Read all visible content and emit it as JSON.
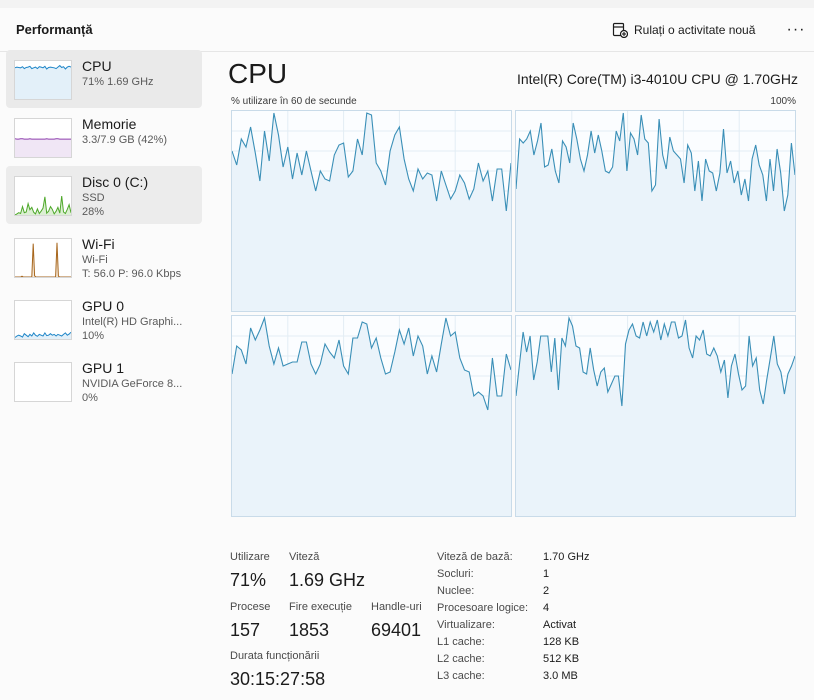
{
  "header": {
    "title": "Performanță",
    "run_task_label": "Rulați o activitate nouă",
    "more_label": "···"
  },
  "sidebar": {
    "items": [
      {
        "name": "CPU",
        "sub1": "71%  1.69 GHz",
        "sub2": "",
        "graph_color": "#1f86c8"
      },
      {
        "name": "Memorie",
        "sub1": "3.3/7.9 GB (42%)",
        "sub2": "",
        "graph_color": "#8e3fae"
      },
      {
        "name": "Disc 0 (C:)",
        "sub1": "SSD",
        "sub2": "28%",
        "graph_color": "#4ea82a"
      },
      {
        "name": "Wi-Fi",
        "sub1": "Wi-Fi",
        "sub2": "T: 56.0  P: 96.0 Kbps",
        "graph_color": "#a7661c"
      },
      {
        "name": "GPU 0",
        "sub1": "Intel(R) HD Graphi...",
        "sub2": "10%",
        "graph_color": "#1f86c8"
      },
      {
        "name": "GPU 1",
        "sub1": "NVIDIA GeForce 8...",
        "sub2": "0%",
        "graph_color": "#1f86c8"
      }
    ]
  },
  "main": {
    "title": "CPU",
    "model": "Intel(R) Core(TM) i3-4010U CPU @ 1.70GHz",
    "util_label": "% utilizare în 60 de secunde",
    "max_label": "100%",
    "graph_color": "#3a8fb7",
    "core_graphs": [
      [
        80,
        73,
        86,
        82,
        92,
        79,
        65,
        90,
        75,
        99,
        88,
        72,
        82,
        66,
        79,
        68,
        80,
        70,
        60,
        70,
        66,
        65,
        78,
        83,
        84,
        67,
        70,
        86,
        78,
        99,
        98,
        74,
        70,
        63,
        80,
        88,
        92,
        76,
        66,
        60,
        71,
        66,
        69,
        68,
        55,
        70,
        63,
        56,
        60,
        68,
        64,
        56,
        61,
        74,
        65,
        70,
        55,
        71,
        71,
        50,
        74
      ],
      [
        61,
        86,
        84,
        86,
        90,
        78,
        85,
        94,
        72,
        73,
        81,
        70,
        64,
        85,
        82,
        74,
        94,
        86,
        76,
        70,
        78,
        90,
        79,
        88,
        80,
        70,
        69,
        72,
        90,
        85,
        99,
        70,
        89,
        86,
        78,
        98,
        86,
        84,
        60,
        63,
        96,
        78,
        71,
        87,
        80,
        78,
        76,
        64,
        83,
        79,
        60,
        75,
        55,
        76,
        70,
        69,
        60,
        69,
        91,
        69,
        75,
        64,
        70,
        58,
        66,
        55,
        76,
        83,
        73,
        68,
        55,
        76,
        60,
        81,
        69,
        50,
        58,
        84,
        68
      ],
      [
        71,
        85,
        83,
        76,
        94,
        88,
        93,
        99,
        85,
        76,
        84,
        75,
        76,
        77,
        77,
        87,
        87,
        76,
        71,
        76,
        86,
        82,
        79,
        88,
        75,
        71,
        89,
        89,
        97,
        96,
        84,
        89,
        79,
        71,
        72,
        82,
        93,
        86,
        94,
        80,
        90,
        85,
        71,
        80,
        72,
        86,
        99,
        90,
        92,
        79,
        73,
        72,
        60,
        62,
        60,
        53,
        79,
        60,
        60,
        81,
        73
      ],
      [
        60,
        76,
        92,
        82,
        90,
        68,
        77,
        90,
        90,
        90,
        72,
        89,
        63,
        89,
        85,
        99,
        95,
        85,
        84,
        72,
        71,
        84,
        73,
        65,
        72,
        74,
        62,
        66,
        70,
        70,
        55,
        86,
        93,
        96,
        90,
        89,
        97,
        90,
        97,
        92,
        98,
        88,
        96,
        90,
        97,
        97,
        89,
        90,
        98,
        84,
        79,
        90,
        88,
        93,
        81,
        80,
        84,
        80,
        72,
        78,
        59,
        75,
        81,
        71,
        63,
        65,
        90,
        75,
        79,
        63,
        56,
        68,
        79,
        90,
        76,
        72,
        61,
        71,
        75,
        80
      ]
    ],
    "cpu_thumb": [
      82,
      84,
      83,
      82,
      85,
      80,
      83,
      84,
      86,
      80,
      82,
      84,
      80,
      85,
      84,
      82,
      86,
      79,
      83,
      84,
      83,
      82,
      80,
      84,
      88,
      83,
      85,
      79,
      84,
      86,
      84
    ],
    "memory_thumb": [
      48,
      47,
      47,
      48,
      48,
      47,
      47,
      47,
      48,
      47,
      47,
      47,
      47,
      47,
      47,
      47,
      47,
      48,
      47,
      47,
      47,
      47,
      48,
      48,
      47,
      47,
      47,
      47,
      47,
      47,
      47
    ],
    "disk_thumb": [
      0,
      3,
      6,
      4,
      22,
      6,
      8,
      30,
      14,
      20,
      7,
      3,
      16,
      4,
      10,
      18,
      48,
      5,
      10,
      22,
      15,
      3,
      10,
      20,
      5,
      50,
      8,
      4,
      15,
      27,
      6
    ],
    "wifi_thumb": [
      0,
      0,
      0,
      0,
      0,
      2,
      0,
      0,
      0,
      0,
      0,
      0,
      0,
      88,
      3,
      0,
      0,
      0,
      0,
      0,
      0,
      0,
      0,
      0,
      0,
      0,
      0,
      0,
      0,
      0,
      90,
      2,
      0,
      0,
      0,
      0,
      0,
      0,
      0,
      0,
      0
    ],
    "gpu0_thumb": [
      4,
      8,
      10,
      8,
      5,
      14,
      10,
      6,
      12,
      8,
      16,
      10,
      7,
      12,
      10,
      8,
      16,
      9,
      10,
      14,
      10,
      12,
      8,
      12,
      10,
      8,
      12,
      16,
      10,
      13,
      18
    ]
  },
  "stats": {
    "util_label": "Utilizare",
    "util_value": "71%",
    "speed_label": "Viteză",
    "speed_value": "1.69 GHz",
    "proc_label": "Procese",
    "proc_value": "157",
    "threads_label": "Fire execuție",
    "threads_value": "1853",
    "handles_label": "Handle-uri",
    "handles_value": "69401",
    "uptime_label": "Durata funcționării",
    "uptime_value": "30:15:27:58"
  },
  "details": [
    {
      "label": "Viteză de bază:",
      "value": "1.70 GHz"
    },
    {
      "label": "Socluri:",
      "value": "1"
    },
    {
      "label": "Nuclee:",
      "value": "2"
    },
    {
      "label": "Procesoare logice:",
      "value": "4"
    },
    {
      "label": "Virtualizare:",
      "value": "Activat"
    },
    {
      "label": "L1 cache:",
      "value": "128 KB"
    },
    {
      "label": "L2 cache:",
      "value": "512 KB"
    },
    {
      "label": "L3 cache:",
      "value": "3.0 MB"
    }
  ]
}
